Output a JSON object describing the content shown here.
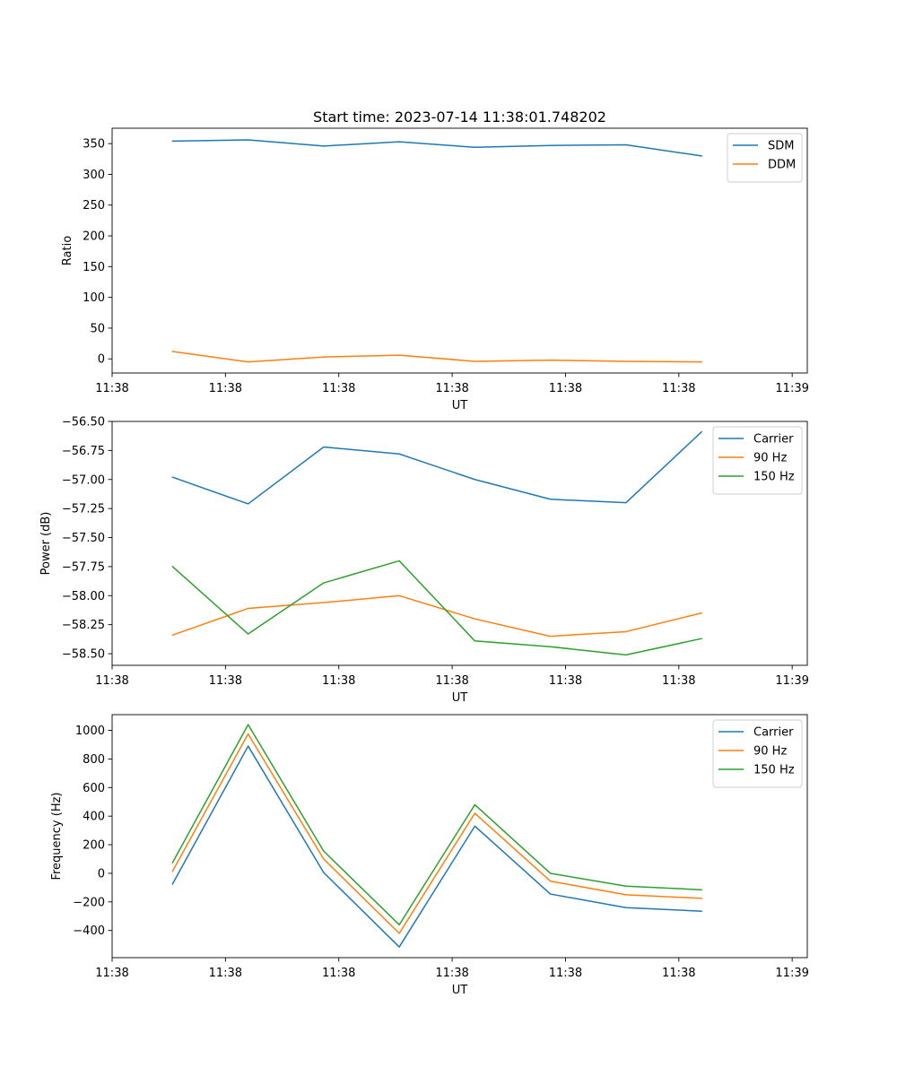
{
  "figure_title": "Start time: 2023-07-14 11:38:01.748202",
  "colors": {
    "c0": "#1f77b4",
    "c1": "#ff7f0e",
    "c2": "#2ca02c",
    "axis": "#000000",
    "legend_border": "#cccccc"
  },
  "chart_data": [
    {
      "type": "line",
      "title": "Start time: 2023-07-14 11:38:01.748202",
      "xlabel": "UT",
      "ylabel": "Ratio",
      "x": [
        1,
        2,
        3,
        4,
        5,
        6,
        7,
        8
      ],
      "xlim": [
        0.2,
        9.4
      ],
      "x_ticks": [
        0.2,
        1.7,
        3.2,
        4.7,
        6.2,
        7.7,
        9.2
      ],
      "x_tick_labels": [
        "11:38",
        "11:38",
        "11:38",
        "11:38",
        "11:38",
        "11:38",
        "11:39"
      ],
      "ylim": [
        -23,
        375
      ],
      "y_ticks": [
        0,
        50,
        100,
        150,
        200,
        250,
        300,
        350
      ],
      "y_tick_labels": [
        "0",
        "50",
        "100",
        "150",
        "200",
        "250",
        "300",
        "350"
      ],
      "legend_position": "top-right",
      "series": [
        {
          "name": "SDM",
          "color_key": "c0",
          "values": [
            354,
            356,
            346,
            353,
            344,
            347,
            348,
            330
          ]
        },
        {
          "name": "DDM",
          "color_key": "c1",
          "values": [
            12,
            -5,
            3,
            6,
            -4,
            -2,
            -4,
            -5
          ]
        }
      ]
    },
    {
      "type": "line",
      "title": "",
      "xlabel": "UT",
      "ylabel": "Power (dB)",
      "x": [
        1,
        2,
        3,
        4,
        5,
        6,
        7,
        8
      ],
      "xlim": [
        0.2,
        9.4
      ],
      "x_ticks": [
        0.2,
        1.7,
        3.2,
        4.7,
        6.2,
        7.7,
        9.2
      ],
      "x_tick_labels": [
        "11:38",
        "11:38",
        "11:38",
        "11:38",
        "11:38",
        "11:38",
        "11:39"
      ],
      "ylim": [
        -58.6,
        -56.5
      ],
      "y_ticks": [
        -56.5,
        -56.75,
        -57.0,
        -57.25,
        -57.5,
        -57.75,
        -58.0,
        -58.25,
        -58.5
      ],
      "y_tick_labels": [
        "−56.50",
        "−56.75",
        "−57.00",
        "−57.25",
        "−57.50",
        "−57.75",
        "−58.00",
        "−58.25",
        "−58.50"
      ],
      "legend_position": "top-right",
      "series": [
        {
          "name": "Carrier",
          "color_key": "c0",
          "values": [
            -56.98,
            -57.21,
            -56.72,
            -56.78,
            -57.0,
            -57.17,
            -57.2,
            -56.59
          ]
        },
        {
          "name": "90 Hz",
          "color_key": "c1",
          "values": [
            -58.34,
            -58.11,
            -58.06,
            -58.0,
            -58.2,
            -58.35,
            -58.31,
            -58.15
          ]
        },
        {
          "name": "150 Hz",
          "color_key": "c2",
          "values": [
            -57.75,
            -58.33,
            -57.89,
            -57.7,
            -58.39,
            -58.44,
            -58.51,
            -58.37
          ]
        }
      ]
    },
    {
      "type": "line",
      "title": "",
      "xlabel": "UT",
      "ylabel": "Frequency (Hz)",
      "x": [
        1,
        2,
        3,
        4,
        5,
        6,
        7,
        8
      ],
      "xlim": [
        0.2,
        9.4
      ],
      "x_ticks": [
        0.2,
        1.7,
        3.2,
        4.7,
        6.2,
        7.7,
        9.2
      ],
      "x_tick_labels": [
        "11:38",
        "11:38",
        "11:38",
        "11:38",
        "11:38",
        "11:38",
        "11:39"
      ],
      "ylim": [
        -590,
        1110
      ],
      "y_ticks": [
        -400,
        -200,
        0,
        200,
        400,
        600,
        800,
        1000
      ],
      "y_tick_labels": [
        "−400",
        "−200",
        "0",
        "200",
        "400",
        "600",
        "800",
        "1000"
      ],
      "legend_position": "top-right",
      "series": [
        {
          "name": "Carrier",
          "color_key": "c0",
          "values": [
            -75,
            890,
            5,
            -515,
            330,
            -145,
            -240,
            -265
          ]
        },
        {
          "name": "90 Hz",
          "color_key": "c1",
          "values": [
            15,
            975,
            100,
            -420,
            420,
            -55,
            -150,
            -175
          ]
        },
        {
          "name": "150 Hz",
          "color_key": "c2",
          "values": [
            75,
            1040,
            155,
            -360,
            480,
            0,
            -90,
            -115
          ]
        }
      ]
    }
  ]
}
